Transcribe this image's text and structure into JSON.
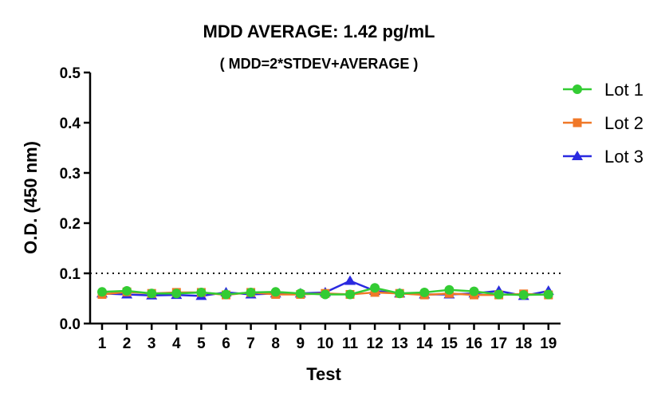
{
  "chart_data": {
    "type": "line",
    "title": "MDD AVERAGE:  1.42 pg/mL",
    "subtitle": "( MDD=2*STDEV+AVERAGE )",
    "xlabel": "Test",
    "ylabel": "O.D. (450 nm)",
    "ylim": [
      0,
      0.5
    ],
    "yticks": [
      "0.0",
      "0.1",
      "0.2",
      "0.3",
      "0.4",
      "0.5"
    ],
    "categories": [
      "1",
      "2",
      "3",
      "4",
      "5",
      "6",
      "7",
      "8",
      "9",
      "10",
      "11",
      "12",
      "13",
      "14",
      "15",
      "16",
      "17",
      "18",
      "19"
    ],
    "reference_line": {
      "y": 0.1,
      "style": "dotted"
    },
    "legend_position": "right",
    "series": [
      {
        "name": "Lot 1",
        "color": "#33cc33",
        "marker": "circle",
        "values": [
          0.063,
          0.065,
          0.06,
          0.06,
          0.062,
          0.058,
          0.062,
          0.063,
          0.06,
          0.058,
          0.058,
          0.071,
          0.06,
          0.062,
          0.067,
          0.064,
          0.058,
          0.057,
          0.058
        ]
      },
      {
        "name": "Lot 2",
        "color": "#f07828",
        "marker": "square",
        "values": [
          0.058,
          0.063,
          0.06,
          0.062,
          0.062,
          0.057,
          0.062,
          0.058,
          0.058,
          0.06,
          0.058,
          0.062,
          0.06,
          0.057,
          0.06,
          0.057,
          0.057,
          0.059,
          0.057
        ]
      },
      {
        "name": "Lot 3",
        "color": "#2a2ae0",
        "marker": "triangle",
        "values": [
          0.06,
          0.058,
          0.056,
          0.057,
          0.055,
          0.062,
          0.058,
          0.06,
          0.06,
          0.062,
          0.085,
          0.065,
          0.06,
          0.058,
          0.058,
          0.06,
          0.065,
          0.055,
          0.065
        ]
      }
    ]
  }
}
